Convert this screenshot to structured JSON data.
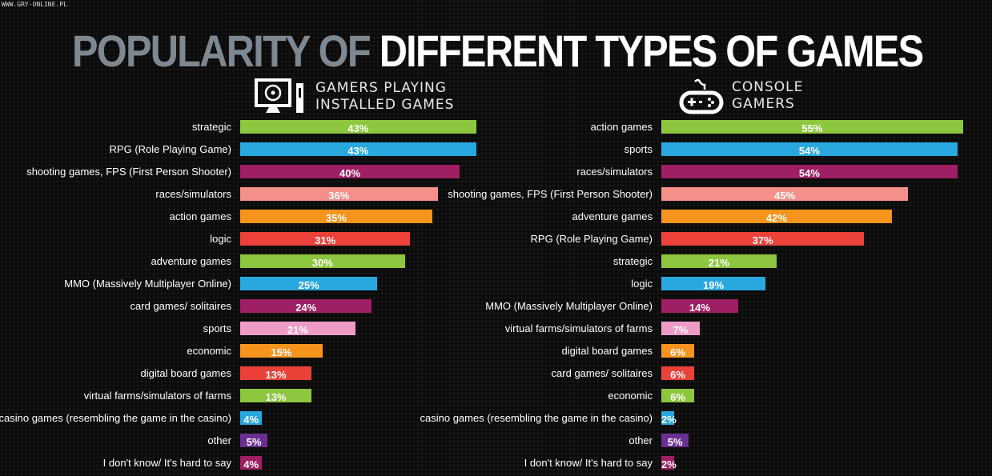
{
  "watermark": "WWW.GRY-ONLINE.PL",
  "title": {
    "part1": "POPULARITY OF",
    "part2": "DIFFERENT TYPES OF GAMES"
  },
  "colors": [
    "#8dc63f",
    "#29a8e0",
    "#9e1f63",
    "#f4908a",
    "#f7941d",
    "#ec4139",
    "#8dc63f",
    "#29a8e0",
    "#9e1f63",
    "#f09bc7",
    "#f7941d",
    "#ec4139",
    "#8dc63f",
    "#29a8e0",
    "#6b2f94",
    "#9e1f63"
  ],
  "chart_data": [
    {
      "type": "bar",
      "orientation": "horizontal",
      "title": "GAMERS PLAYING INSTALLED GAMES",
      "icon": "desktop-computer-icon",
      "unit": "%",
      "categories": [
        "strategic",
        "RPG (Role Playing Game)",
        "shooting games, FPS (First Person Shooter)",
        "races/simulators",
        "action games",
        "logic",
        "adventure games",
        "MMO (Massively Multiplayer Online)",
        "card games/ solitaires",
        "sports",
        "economic",
        "digital board games",
        "virtual farms/simulators of farms",
        "casino games (resembling the game in the casino)",
        "other",
        "I don't know/ It's hard to say"
      ],
      "values": [
        43,
        43,
        40,
        36,
        35,
        31,
        30,
        25,
        24,
        21,
        15,
        13,
        13,
        4,
        5,
        4
      ]
    },
    {
      "type": "bar",
      "orientation": "horizontal",
      "title": "CONSOLE GAMERS",
      "icon": "gamepad-icon",
      "unit": "%",
      "categories": [
        "action games",
        "sports",
        "races/simulators",
        "shooting games, FPS (First Person Shooter)",
        "adventure games",
        "RPG (Role Playing Game)",
        "strategic",
        "logic",
        "MMO (Massively Multiplayer Online)",
        "virtual farms/simulators of farms",
        "digital board games",
        "card games/ solitaires",
        "economic",
        "casino games (resembling the game in the casino)",
        "other",
        "I don't know/ It's hard to say"
      ],
      "values": [
        55,
        54,
        54,
        45,
        42,
        37,
        21,
        19,
        14,
        7,
        6,
        6,
        6,
        2,
        5,
        2
      ]
    }
  ],
  "headers": [
    {
      "line1": "GAMERS PLAYING",
      "line2": "INSTALLED GAMES"
    },
    {
      "line1": "CONSOLE",
      "line2": "GAMERS"
    }
  ]
}
